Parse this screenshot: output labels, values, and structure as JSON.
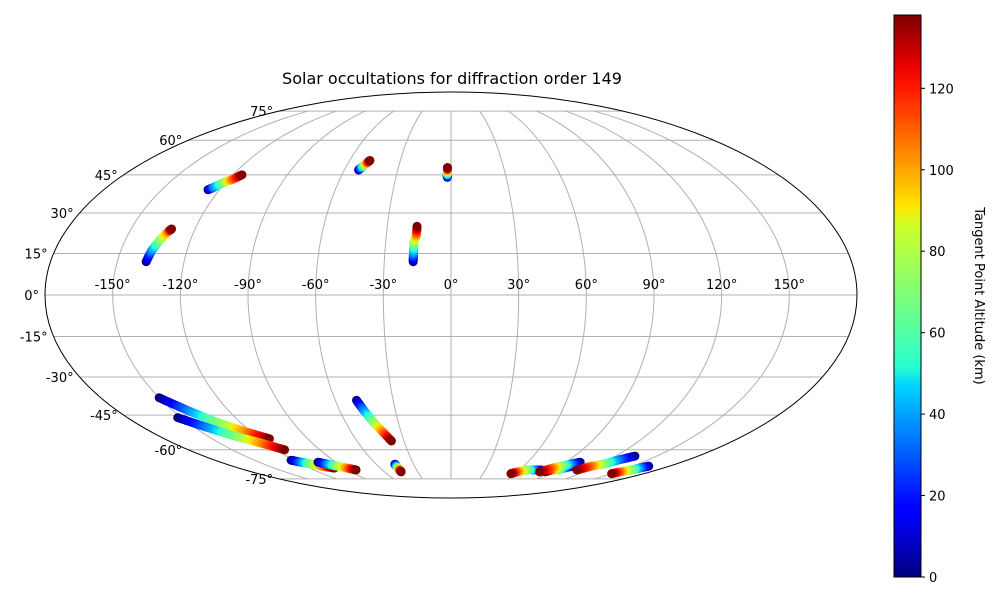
{
  "chart_data": {
    "type": "scatter",
    "projection": "mollweide",
    "title": "Solar occultations for diffraction order 149",
    "longitude_ticks": [
      "-150°",
      "-120°",
      "-90°",
      "-60°",
      "-30°",
      "0°",
      "30°",
      "60°",
      "90°",
      "120°",
      "150°"
    ],
    "longitude_tick_values": [
      -150,
      -120,
      -90,
      -60,
      -30,
      0,
      30,
      60,
      90,
      120,
      150
    ],
    "latitude_ticks": [
      "75°",
      "60°",
      "45°",
      "30°",
      "15°",
      "0°",
      "-15°",
      "-30°",
      "-45°",
      "-60°",
      "-75°"
    ],
    "latitude_tick_values": [
      75,
      60,
      45,
      30,
      15,
      0,
      -15,
      -30,
      -45,
      -60,
      -75
    ],
    "grid": true,
    "colorbar": {
      "label": "Tangent Point Altitude (km)",
      "ticks": [
        "0",
        "20",
        "40",
        "60",
        "80",
        "100",
        "120"
      ],
      "tick_values": [
        0,
        20,
        40,
        60,
        80,
        100,
        120
      ],
      "range": [
        0,
        138
      ],
      "colormap": "jet"
    },
    "series": [
      {
        "points": [
          [
            -137,
            12,
            0
          ],
          [
            -136,
            16,
            34
          ],
          [
            -134,
            20,
            69
          ],
          [
            -132,
            23,
            103
          ],
          [
            -131,
            24,
            138
          ]
        ]
      },
      {
        "points": [
          [
            -126,
            39,
            0
          ],
          [
            -124,
            40,
            34
          ],
          [
            -121,
            42,
            69
          ],
          [
            -118,
            43,
            103
          ],
          [
            -115,
            45,
            138
          ]
        ]
      },
      {
        "points": [
          [
            -52,
            47,
            0
          ],
          [
            -51,
            48,
            34
          ],
          [
            -50,
            49,
            69
          ],
          [
            -49,
            50,
            103
          ],
          [
            -48,
            51,
            138
          ]
        ]
      },
      {
        "points": [
          [
            -17,
            12,
            0
          ],
          [
            -17,
            15,
            34
          ],
          [
            -17,
            19,
            69
          ],
          [
            -16,
            22,
            103
          ],
          [
            -16,
            25,
            138
          ]
        ]
      },
      {
        "points": [
          [
            -2,
            44,
            0
          ],
          [
            -2,
            45,
            34
          ],
          [
            -2,
            46,
            69
          ],
          [
            -2,
            47,
            103
          ],
          [
            -2,
            48,
            138
          ]
        ]
      },
      {
        "points": [
          [
            -150,
            -38,
            0
          ],
          [
            -142,
            -43,
            34
          ],
          [
            -133,
            -48,
            69
          ],
          [
            -123,
            -52,
            103
          ],
          [
            -114,
            -55,
            138
          ]
        ]
      },
      {
        "points": [
          [
            -152,
            -46,
            0
          ],
          [
            -143,
            -50,
            34
          ],
          [
            -133,
            -54,
            69
          ],
          [
            -123,
            -57,
            103
          ],
          [
            -114,
            -60,
            138
          ]
        ]
      },
      {
        "points": [
          [
            -122,
            -65,
            0
          ],
          [
            -117,
            -66,
            34
          ],
          [
            -112,
            -67,
            69
          ],
          [
            -106,
            -68,
            103
          ],
          [
            -99,
            -69,
            138
          ]
        ]
      },
      {
        "points": [
          [
            -104,
            -66,
            0
          ],
          [
            -99,
            -67,
            34
          ],
          [
            -94,
            -68,
            69
          ],
          [
            -88,
            -69,
            103
          ],
          [
            -83,
            -70,
            138
          ]
        ]
      },
      {
        "points": [
          [
            -49,
            -39,
            0
          ],
          [
            -47,
            -43,
            34
          ],
          [
            -44,
            -48,
            69
          ],
          [
            -41,
            -52,
            103
          ],
          [
            -38,
            -56,
            138
          ]
        ]
      },
      {
        "points": [
          [
            -45,
            -67,
            0
          ],
          [
            -45,
            -68,
            34
          ],
          [
            -45,
            -69,
            69
          ],
          [
            -45,
            -70,
            103
          ],
          [
            -45,
            -71,
            138
          ]
        ]
      },
      {
        "points": [
          [
            79,
            -70,
            0
          ],
          [
            72,
            -70,
            34
          ],
          [
            66,
            -70,
            69
          ],
          [
            60,
            -71,
            103
          ],
          [
            56,
            -72,
            138
          ]
        ]
      },
      {
        "points": [
          [
            100,
            -68,
            0
          ],
          [
            96,
            -69,
            34
          ],
          [
            93,
            -70,
            69
          ],
          [
            88,
            -70,
            103
          ],
          [
            85,
            -71,
            138
          ]
        ]
      },
      {
        "points": [
          [
            101,
            -66,
            0
          ],
          [
            96,
            -67,
            34
          ],
          [
            91,
            -68,
            69
          ],
          [
            86,
            -69,
            103
          ],
          [
            80,
            -71,
            138
          ]
        ]
      },
      {
        "points": [
          [
            134,
            -63,
            0
          ],
          [
            127,
            -65,
            34
          ],
          [
            122,
            -67,
            69
          ],
          [
            116,
            -68,
            103
          ],
          [
            110,
            -70,
            138
          ]
        ]
      },
      {
        "points": [
          [
            163,
            -68,
            0
          ],
          [
            160,
            -69,
            34
          ],
          [
            157,
            -70,
            69
          ],
          [
            153,
            -71,
            103
          ],
          [
            150,
            -72,
            138
          ]
        ]
      }
    ]
  }
}
